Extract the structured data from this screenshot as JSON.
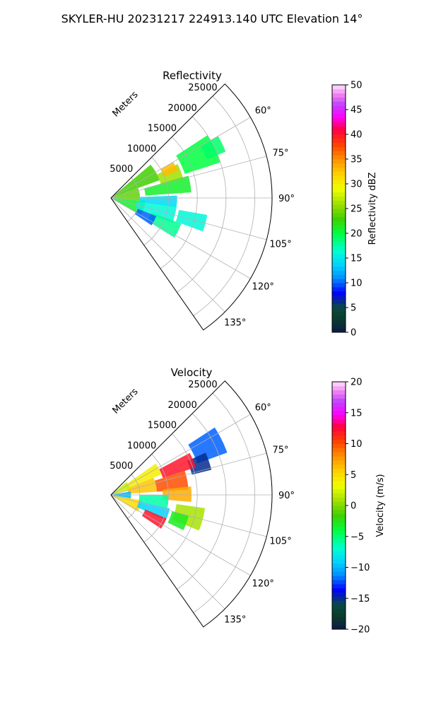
{
  "suptitle": "SKYLER-HU  20231217  224913.140 UTC Elevation 14°",
  "chart_data": [
    {
      "type": "heatmap",
      "projection": "polar-sector",
      "title": "Reflectivity",
      "radial_axis_label": "Meters",
      "radial_ticks": [
        5000,
        10000,
        15000,
        20000,
        25000
      ],
      "radial_tick_labels": [
        "5000",
        "10000",
        "15000",
        "20000",
        "25000"
      ],
      "radial_max": 28000,
      "azimuth_range_deg": [
        45,
        145
      ],
      "azimuth_ticks": [
        60,
        75,
        90,
        105,
        120,
        135
      ],
      "azimuth_tick_labels": [
        "60°",
        "75°",
        "90°",
        "105°",
        "120°",
        "135°"
      ],
      "grid": true,
      "colorbar": {
        "label": "Reflectivity dBZ",
        "range": [
          0,
          50
        ],
        "ticks": [
          0,
          5,
          10,
          15,
          20,
          25,
          30,
          35,
          40,
          45,
          50
        ],
        "tick_labels": [
          "0",
          "5",
          "10",
          "15",
          "20",
          "25",
          "30",
          "35",
          "40",
          "45",
          "50"
        ]
      },
      "field_regions": [
        {
          "az": [
            57,
            72
          ],
          "r": [
            13500,
            20000
          ],
          "value": 20
        },
        {
          "az": [
            60,
            68
          ],
          "r": [
            18000,
            21500
          ],
          "value": 19
        },
        {
          "az": [
            63,
            75
          ],
          "r": [
            9000,
            13000
          ],
          "value": 26
        },
        {
          "az": [
            60,
            68
          ],
          "r": [
            10000,
            12500
          ],
          "value": 33
        },
        {
          "az": [
            74,
            86
          ],
          "r": [
            6000,
            14000
          ],
          "value": 21
        },
        {
          "az": [
            50,
            70
          ],
          "r": [
            500,
            9000
          ],
          "value": 23
        },
        {
          "az": [
            70,
            95
          ],
          "r": [
            500,
            5000
          ],
          "value": 24
        },
        {
          "az": [
            95,
            120
          ],
          "r": [
            500,
            6000
          ],
          "value": 21
        },
        {
          "az": [
            88,
            98
          ],
          "r": [
            5000,
            11500
          ],
          "value": 14
        },
        {
          "az": [
            97,
            112
          ],
          "r": [
            4500,
            11500
          ],
          "value": 16
        },
        {
          "az": [
            110,
            122
          ],
          "r": [
            7500,
            13000
          ],
          "value": 18
        },
        {
          "az": [
            100,
            110
          ],
          "r": [
            12000,
            17000
          ],
          "value": 16
        },
        {
          "az": [
            112,
            124
          ],
          "r": [
            5000,
            8500
          ],
          "value": 10
        }
      ]
    },
    {
      "type": "heatmap",
      "projection": "polar-sector",
      "title": "Velocity",
      "radial_axis_label": "Meters",
      "radial_ticks": [
        5000,
        10000,
        15000,
        20000,
        25000
      ],
      "radial_tick_labels": [
        "5000",
        "10000",
        "15000",
        "20000",
        "25000"
      ],
      "radial_max": 28000,
      "azimuth_range_deg": [
        45,
        145
      ],
      "azimuth_ticks": [
        60,
        75,
        90,
        105,
        120,
        135
      ],
      "azimuth_tick_labels": [
        "60°",
        "75°",
        "90°",
        "105°",
        "120°",
        "135°"
      ],
      "grid": true,
      "colorbar": {
        "label": "Velocity (m/s)",
        "range": [
          -20,
          20
        ],
        "ticks": [
          -20,
          -15,
          -10,
          -5,
          0,
          5,
          10,
          15,
          20
        ],
        "tick_labels": [
          "−20",
          "−15",
          "−10",
          "−5",
          "0",
          "5",
          "10",
          "15",
          "20"
        ]
      },
      "field_regions": [
        {
          "az": [
            57,
            70
          ],
          "r": [
            16000,
            21500
          ],
          "value": -12
        },
        {
          "az": [
            66,
            76
          ],
          "r": [
            14500,
            18000
          ],
          "value": -15
        },
        {
          "az": [
            62,
            72
          ],
          "r": [
            9500,
            15500
          ],
          "value": 12
        },
        {
          "az": [
            72,
            86
          ],
          "r": [
            8000,
            13500
          ],
          "value": 10
        },
        {
          "az": [
            84,
            95
          ],
          "r": [
            9000,
            14000
          ],
          "value": 7
        },
        {
          "az": [
            55,
            68
          ],
          "r": [
            3000,
            9500
          ],
          "value": 4
        },
        {
          "az": [
            68,
            86
          ],
          "r": [
            3000,
            8000
          ],
          "value": 6
        },
        {
          "az": [
            50,
            75
          ],
          "r": [
            500,
            3500
          ],
          "value": 2
        },
        {
          "az": [
            80,
            100
          ],
          "r": [
            500,
            3500
          ],
          "value": -10
        },
        {
          "az": [
            100,
            122
          ],
          "r": [
            500,
            5500
          ],
          "value": 5
        },
        {
          "az": [
            90,
            103
          ],
          "r": [
            5000,
            10000
          ],
          "value": -6
        },
        {
          "az": [
            103,
            115
          ],
          "r": [
            5000,
            10500
          ],
          "value": -9
        },
        {
          "az": [
            113,
            124
          ],
          "r": [
            6500,
            10500
          ],
          "value": 12
        },
        {
          "az": [
            98,
            112
          ],
          "r": [
            11500,
            16500
          ],
          "value": 1
        },
        {
          "az": [
            105,
            116
          ],
          "r": [
            11000,
            14000
          ],
          "value": -3
        }
      ]
    }
  ]
}
